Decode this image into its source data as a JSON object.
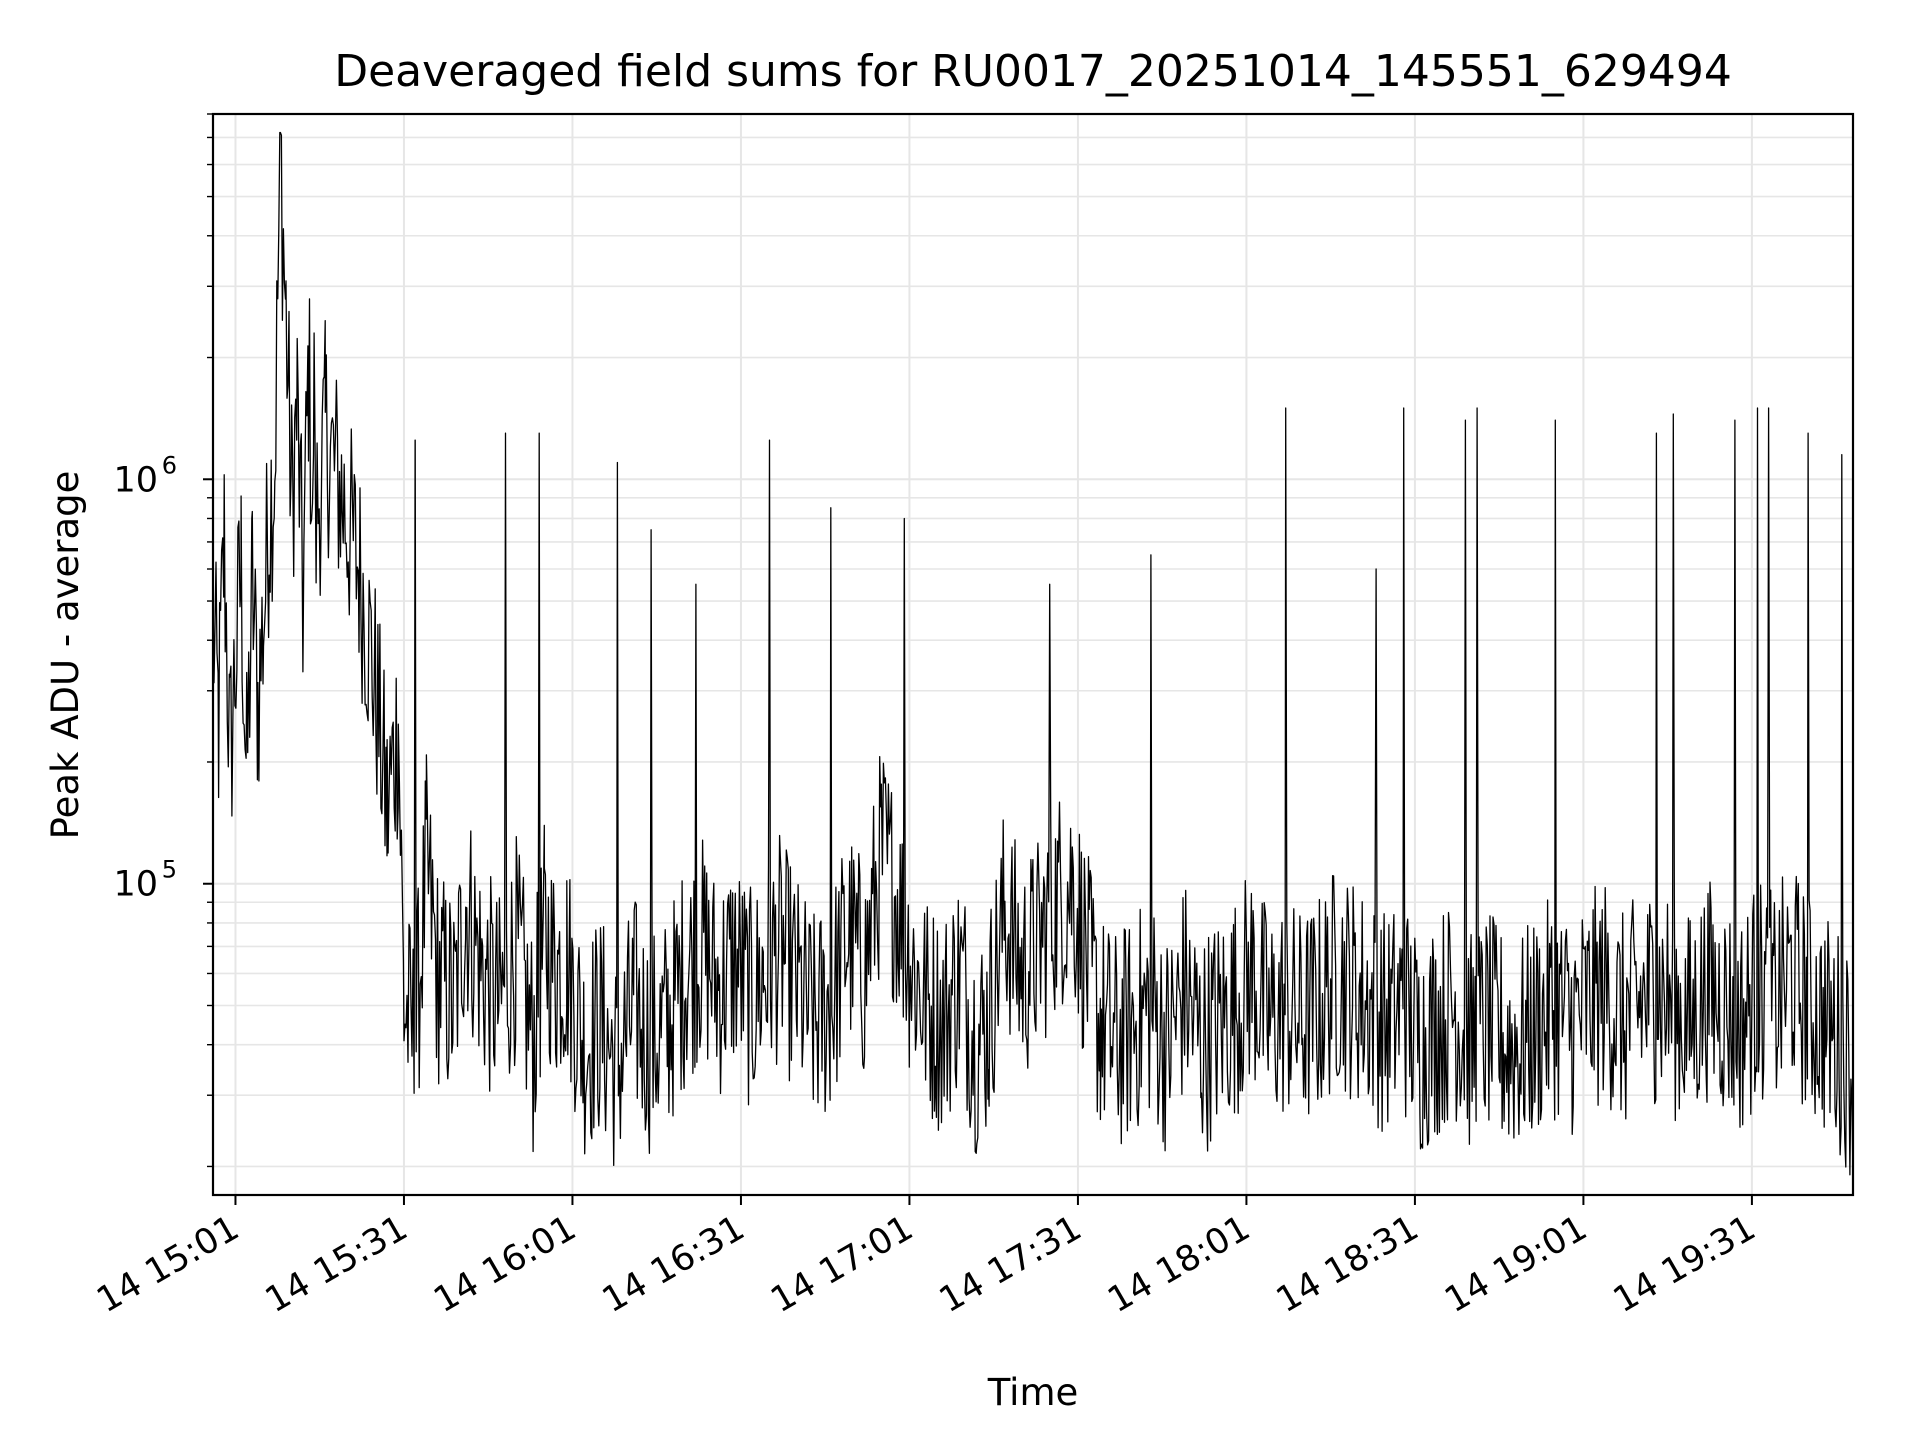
{
  "chart_data": {
    "type": "line",
    "title": "Deaveraged field sums for RU0017_20251014_145551_629494",
    "xlabel": "Time",
    "ylabel": "Peak ADU - average",
    "x_tick_labels": [
      "14 15:01",
      "14 15:31",
      "14 16:01",
      "14 16:31",
      "14 17:01",
      "14 17:31",
      "14 18:01",
      "14 18:31",
      "14 19:01",
      "14 19:31"
    ],
    "y_tick_labels": [
      {
        "base": "10",
        "exp": "5",
        "value": 100000
      },
      {
        "base": "10",
        "exp": "6",
        "value": 1000000
      }
    ],
    "y_scale": "log",
    "ylim": [
      17000,
      8000000
    ],
    "xlim": [
      "2025-10-14 14:57",
      "2025-10-14 19:49"
    ],
    "grid": true,
    "line_color": "#000000",
    "series": [
      {
        "x": [
          "2025-10-14 14:57",
          "2025-10-14 14:58",
          "2025-10-14 14:59",
          "2025-10-14 15:00",
          "2025-10-14 15:02",
          "2025-10-14 15:03",
          "2025-10-14 15:04",
          "2025-10-14 15:05",
          "2025-10-14 15:06",
          "2025-10-14 15:07",
          "2025-10-14 15:08",
          "2025-10-14 15:09",
          "2025-10-14 15:10",
          "2025-10-14 15:11",
          "2025-10-14 15:12",
          "2025-10-14 15:13",
          "2025-10-14 15:14",
          "2025-10-14 15:15",
          "2025-10-14 15:17",
          "2025-10-14 15:20",
          "2025-10-14 15:23",
          "2025-10-14 15:26",
          "2025-10-14 15:28",
          "2025-10-14 15:30",
          "2025-10-14 15:31",
          "2025-10-14 15:33",
          "2025-10-14 15:35",
          "2025-10-14 15:37",
          "2025-10-14 15:40",
          "2025-10-14 15:42",
          "2025-10-14 15:45",
          "2025-10-14 15:48",
          "2025-10-14 15:51",
          "2025-10-14 15:54",
          "2025-10-14 15:56",
          "2025-10-14 15:58",
          "2025-10-14 16:00",
          "2025-10-14 16:03",
          "2025-10-14 16:06",
          "2025-10-14 16:09",
          "2025-10-14 16:12",
          "2025-10-14 16:15",
          "2025-10-14 16:18",
          "2025-10-14 16:21",
          "2025-10-14 16:24",
          "2025-10-14 16:27",
          "2025-10-14 16:30",
          "2025-10-14 16:33",
          "2025-10-14 16:35",
          "2025-10-14 16:38",
          "2025-10-14 16:41",
          "2025-10-14 16:44",
          "2025-10-14 16:47",
          "2025-10-14 16:50",
          "2025-10-14 16:53",
          "2025-10-14 16:56",
          "2025-10-14 16:59",
          "2025-10-14 17:01",
          "2025-10-14 17:04",
          "2025-10-14 17:07",
          "2025-10-14 17:10",
          "2025-10-14 17:13",
          "2025-10-14 17:15",
          "2025-10-14 17:18",
          "2025-10-14 17:21",
          "2025-10-14 17:24",
          "2025-10-14 17:27",
          "2025-10-14 17:30",
          "2025-10-14 17:33",
          "2025-10-14 17:35",
          "2025-10-14 17:38",
          "2025-10-14 17:41",
          "2025-10-14 17:44",
          "2025-10-14 17:47",
          "2025-10-14 17:50",
          "2025-10-14 17:53",
          "2025-10-14 17:56",
          "2025-10-14 17:59",
          "2025-10-14 18:02",
          "2025-10-14 18:05",
          "2025-10-14 18:08",
          "2025-10-14 18:11",
          "2025-10-14 18:14",
          "2025-10-14 18:17",
          "2025-10-14 18:20",
          "2025-10-14 18:23",
          "2025-10-14 18:26",
          "2025-10-14 18:29",
          "2025-10-14 18:32",
          "2025-10-14 18:35",
          "2025-10-14 18:38",
          "2025-10-14 18:41",
          "2025-10-14 18:44",
          "2025-10-14 18:47",
          "2025-10-14 18:50",
          "2025-10-14 18:53",
          "2025-10-14 18:56",
          "2025-10-14 18:59",
          "2025-10-14 19:02",
          "2025-10-14 19:05",
          "2025-10-14 19:08",
          "2025-10-14 19:11",
          "2025-10-14 19:14",
          "2025-10-14 19:17",
          "2025-10-14 19:20",
          "2025-10-14 19:23",
          "2025-10-14 19:26",
          "2025-10-14 19:29",
          "2025-10-14 19:32",
          "2025-10-14 19:35",
          "2025-10-14 19:38",
          "2025-10-14 19:41",
          "2025-10-14 19:44",
          "2025-10-14 19:47",
          "2025-10-14 19:49"
        ],
        "values": [
          450000,
          250000,
          700000,
          200000,
          600000,
          180000,
          550000,
          280000,
          450000,
          800000,
          1100000,
          6500000,
          2500000,
          900000,
          1500000,
          500000,
          1900000,
          700000,
          1300000,
          900000,
          600000,
          300000,
          150000,
          250000,
          50000,
          40000,
          110000,
          60000,
          50000,
          90000,
          60000,
          50000,
          70000,
          40000,
          75000,
          60000,
          65000,
          40000,
          45000,
          35000,
          50000,
          40000,
          45000,
          60000,
          70000,
          55000,
          65000,
          50000,
          60000,
          70000,
          55000,
          45000,
          50000,
          75000,
          60000,
          120000,
          90000,
          65000,
          50000,
          45000,
          60000,
          40000,
          45000,
          85000,
          60000,
          70000,
          90000,
          100000,
          60000,
          45000,
          40000,
          45000,
          50000,
          40000,
          55000,
          40000,
          45000,
          50000,
          60000,
          45000,
          50000,
          45000,
          50000,
          60000,
          55000,
          50000,
          45000,
          50000,
          40000,
          45000,
          50000,
          40000,
          45000,
          40000,
          40000,
          45000,
          50000,
          45000,
          50000,
          55000,
          45000,
          50000,
          55000,
          50000,
          45000,
          55000,
          50000,
          45000,
          55000,
          50000,
          60000,
          50000,
          45000,
          40000,
          35000
        ]
      }
    ],
    "spikes": [
      {
        "x": "2025-10-14 15:15",
        "value": 2300000
      },
      {
        "x": "2025-10-14 15:33",
        "value": 1250000
      },
      {
        "x": "2025-10-14 15:49",
        "value": 1300000
      },
      {
        "x": "2025-10-14 15:55",
        "value": 1300000
      },
      {
        "x": "2025-10-14 16:09",
        "value": 1100000
      },
      {
        "x": "2025-10-14 16:15",
        "value": 750000
      },
      {
        "x": "2025-10-14 16:23",
        "value": 550000
      },
      {
        "x": "2025-10-14 16:36",
        "value": 1250000
      },
      {
        "x": "2025-10-14 16:47",
        "value": 850000
      },
      {
        "x": "2025-10-14 17:00",
        "value": 800000
      },
      {
        "x": "2025-10-14 17:26",
        "value": 550000
      },
      {
        "x": "2025-10-14 17:44",
        "value": 650000
      },
      {
        "x": "2025-10-14 18:08",
        "value": 1500000
      },
      {
        "x": "2025-10-14 18:24",
        "value": 600000
      },
      {
        "x": "2025-10-14 18:29",
        "value": 1500000
      },
      {
        "x": "2025-10-14 18:40",
        "value": 1400000
      },
      {
        "x": "2025-10-14 18:42",
        "value": 1500000
      },
      {
        "x": "2025-10-14 18:56",
        "value": 1400000
      },
      {
        "x": "2025-10-14 19:14",
        "value": 1300000
      },
      {
        "x": "2025-10-14 19:17",
        "value": 1450000
      },
      {
        "x": "2025-10-14 19:28",
        "value": 1400000
      },
      {
        "x": "2025-10-14 19:32",
        "value": 1500000
      },
      {
        "x": "2025-10-14 19:34",
        "value": 1500000
      },
      {
        "x": "2025-10-14 19:41",
        "value": 1300000
      },
      {
        "x": "2025-10-14 19:47",
        "value": 1150000
      }
    ]
  }
}
